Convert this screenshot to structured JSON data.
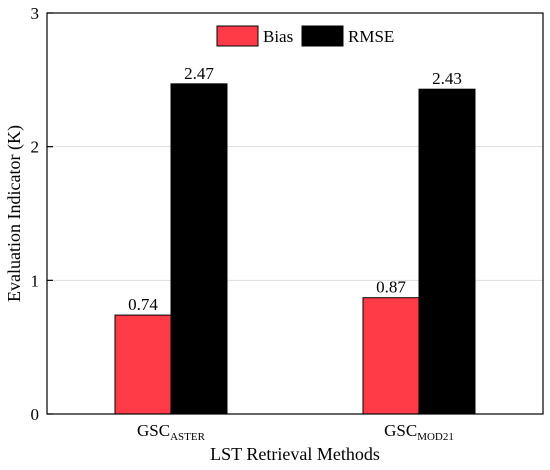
{
  "chart_data": {
    "type": "bar",
    "categories": [
      {
        "main": "GSC",
        "sub": "ASTER"
      },
      {
        "main": "GSC",
        "sub": "MOD21"
      }
    ],
    "series": [
      {
        "name": "Bias",
        "values": [
          0.74,
          0.87
        ],
        "color": "#ff3b47"
      },
      {
        "name": "RMSE",
        "values": [
          2.47,
          2.43
        ],
        "color": "#000000"
      }
    ],
    "data_labels": [
      [
        "0.74",
        "0.87"
      ],
      [
        "2.47",
        "2.43"
      ]
    ],
    "xlabel": "LST Retrieval Methods",
    "ylabel": "Evaluation Indicator (K)",
    "ylim": [
      0,
      3
    ],
    "yticks": [
      0,
      1,
      2,
      3
    ],
    "ytick_labels": [
      "0",
      "1",
      "2",
      "3"
    ],
    "grid": "horizontal",
    "legend": "top-center"
  }
}
